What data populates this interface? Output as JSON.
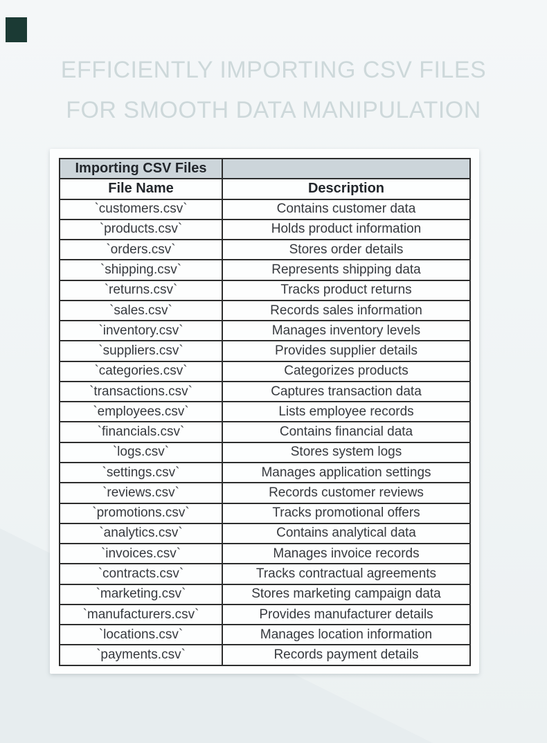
{
  "brand": {
    "mark_color": "#1b3a34"
  },
  "title": {
    "line1": "EFFICIENTLY IMPORTING CSV FILES",
    "line2": "FOR SMOOTH DATA MANIPULATION",
    "color": "#cdd8da"
  },
  "table": {
    "caption": "Importing CSV Files",
    "caption_bg": "#ccd5da",
    "border_color": "#2d2d2d",
    "columns": [
      "File Name",
      "Description"
    ],
    "rows": [
      {
        "file": "`customers.csv`",
        "description": "Contains customer data"
      },
      {
        "file": "`products.csv`",
        "description": "Holds product information"
      },
      {
        "file": "`orders.csv`",
        "description": "Stores order details"
      },
      {
        "file": "`shipping.csv`",
        "description": "Represents shipping data"
      },
      {
        "file": "`returns.csv`",
        "description": "Tracks product returns"
      },
      {
        "file": "`sales.csv`",
        "description": "Records sales information"
      },
      {
        "file": "`inventory.csv`",
        "description": "Manages inventory levels"
      },
      {
        "file": "`suppliers.csv`",
        "description": "Provides supplier details"
      },
      {
        "file": "`categories.csv`",
        "description": "Categorizes products"
      },
      {
        "file": "`transactions.csv`",
        "description": "Captures transaction data"
      },
      {
        "file": "`employees.csv`",
        "description": "Lists employee records"
      },
      {
        "file": "`financials.csv`",
        "description": "Contains financial data"
      },
      {
        "file": "`logs.csv`",
        "description": "Stores system logs"
      },
      {
        "file": "`settings.csv`",
        "description": "Manages application settings"
      },
      {
        "file": "`reviews.csv`",
        "description": "Records customer reviews"
      },
      {
        "file": "`promotions.csv`",
        "description": "Tracks promotional offers"
      },
      {
        "file": "`analytics.csv`",
        "description": "Contains analytical data"
      },
      {
        "file": "`invoices.csv`",
        "description": "Manages invoice records"
      },
      {
        "file": "`contracts.csv`",
        "description": "Tracks contractual agreements"
      },
      {
        "file": "`marketing.csv`",
        "description": "Stores marketing campaign data"
      },
      {
        "file": "`manufacturers.csv`",
        "description": "Provides manufacturer details"
      },
      {
        "file": "`locations.csv`",
        "description": "Manages location information"
      },
      {
        "file": "`payments.csv`",
        "description": "Records payment details"
      }
    ]
  }
}
